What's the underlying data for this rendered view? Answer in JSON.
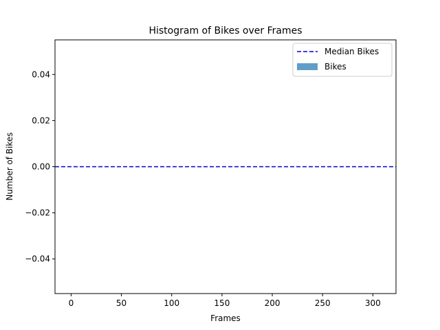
{
  "chart_data": {
    "type": "bar",
    "title": "Histogram of Bikes over Frames",
    "xlabel": "Frames",
    "ylabel": "Number of Bikes",
    "xlim": [
      -16,
      323
    ],
    "ylim": [
      -0.055,
      0.055
    ],
    "xticks": [
      0,
      50,
      100,
      150,
      200,
      250,
      300
    ],
    "xtick_labels": [
      "0",
      "50",
      "100",
      "150",
      "200",
      "250",
      "300"
    ],
    "yticks": [
      0.04,
      0.02,
      0.0,
      -0.02,
      -0.04
    ],
    "ytick_labels": [
      "0.04",
      "0.02",
      "0.00",
      "−0.02",
      "−0.04"
    ],
    "grid": false,
    "legend_position": "upper right",
    "series": [
      {
        "name": "Median Bikes",
        "kind": "hline",
        "value": 0.0,
        "style": "dashed",
        "color": "#0000cc"
      },
      {
        "name": "Bikes",
        "kind": "bar",
        "color": "#5f9ec9",
        "values": []
      }
    ]
  }
}
